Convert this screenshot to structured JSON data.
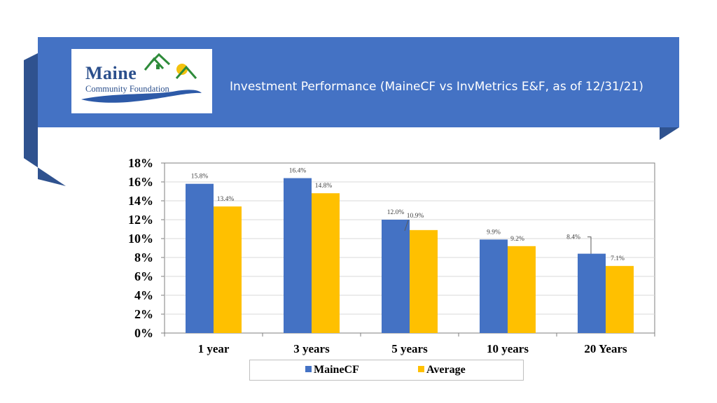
{
  "header": {
    "title": "Investment Performance (MaineCF vs InvMetrics E&F, as of 12/31/21)",
    "banner_color": "#4472c4"
  },
  "logo": {
    "line1": "Maine",
    "line2": "Community Foundation",
    "colors": {
      "text": "#2b4f8c",
      "house_green": "#2e8b3a",
      "sun_yellow": "#f4c20d",
      "wave_blue": "#2d5aa8"
    }
  },
  "chart_data": {
    "type": "bar",
    "categories": [
      "1 year",
      "3 years",
      "5 years",
      "10 years",
      "20 Years"
    ],
    "series": [
      {
        "name": "MaineCF",
        "values": [
          15.8,
          16.4,
          12.0,
          9.9,
          8.4
        ],
        "labels": [
          "15.8%",
          "16.4%",
          "12.0%",
          "9.9%",
          "8.4%"
        ],
        "color": "#4472c4"
      },
      {
        "name": "Average",
        "values": [
          13.4,
          14.8,
          10.9,
          9.2,
          7.1
        ],
        "labels": [
          "13.4%",
          "14.8%",
          "10.9%",
          "9.2%",
          "7.1%"
        ],
        "color": "#ffc000"
      }
    ],
    "ylim": [
      0,
      18
    ],
    "yticks": [
      "0%",
      "2%",
      "4%",
      "6%",
      "8%",
      "10%",
      "12%",
      "14%",
      "16%",
      "18%"
    ],
    "grid": true,
    "legend_position": "bottom"
  }
}
